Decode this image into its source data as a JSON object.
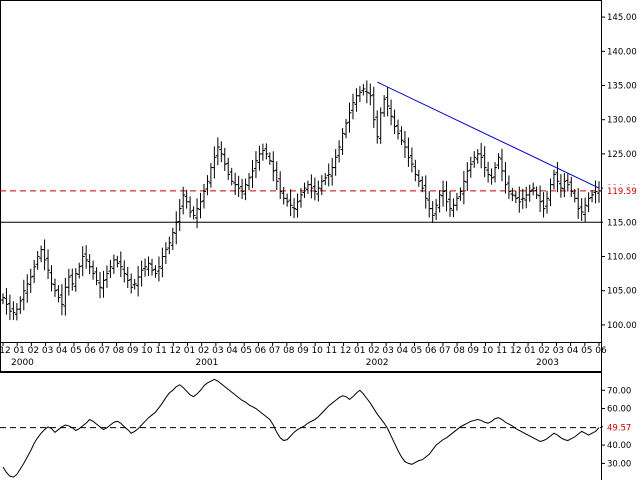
{
  "chart_data": [
    {
      "type": "ohlc",
      "title": "",
      "xlabel": "",
      "ylabel": "",
      "ylim": [
        97.5,
        147.5
      ],
      "yticks": [
        "145.00",
        "140.00",
        "135.00",
        "130.00",
        "125.00",
        "120.00",
        "115.00",
        "110.00",
        "105.00",
        "100.00"
      ],
      "month_labels": [
        "12",
        "01",
        "02",
        "03",
        "04",
        "05",
        "06",
        "07",
        "08",
        "09",
        "10",
        "11",
        "12",
        "01",
        "02",
        "03",
        "04",
        "05",
        "06",
        "07",
        "08",
        "09",
        "10",
        "11",
        "12",
        "01",
        "02",
        "03",
        "04",
        "05",
        "06",
        "07",
        "08",
        "09",
        "10",
        "11",
        "12",
        "01",
        "02",
        "03",
        "04",
        "05",
        "06"
      ],
      "year_labels": [
        "2000",
        "2001",
        "2002",
        "2003"
      ],
      "current_price_label": "119.59",
      "support_label": "115.00",
      "colors": {
        "price_bars": "#000000",
        "trendline": "#0000cc",
        "current_price_line": "#cc0000",
        "support_line": "#000000"
      },
      "series": [
        {
          "weekly_close": [
            104.0,
            103.0,
            102.0,
            101.8,
            102.3,
            103.5,
            105.0,
            106.0,
            107.0,
            108.5,
            110.0,
            111.0,
            109.5,
            108.0,
            106.0,
            105.0,
            104.0,
            103.0,
            105.5,
            107.0,
            106.0,
            107.5,
            108.5,
            110.0,
            109.5,
            108.5,
            107.5,
            106.5,
            105.5,
            106.5,
            107.5,
            108.5,
            109.5,
            109.0,
            108.5,
            107.5,
            106.5,
            105.5,
            106.0,
            107.0,
            108.0,
            108.5,
            109.0,
            108.0,
            107.5,
            108.5,
            110.0,
            111.0,
            112.0,
            113.5,
            115.0,
            117.0,
            119.0,
            118.0,
            116.5,
            116.0,
            117.0,
            118.0,
            119.5,
            121.0,
            123.0,
            124.5,
            126.0,
            125.0,
            123.5,
            122.0,
            121.0,
            120.5,
            120.0,
            119.5,
            120.5,
            121.5,
            122.5,
            124.0,
            125.0,
            125.5,
            125.0,
            124.0,
            122.5,
            121.0,
            119.5,
            118.5,
            118.0,
            117.5,
            117.0,
            118.0,
            119.0,
            120.0,
            120.5,
            120.0,
            119.5,
            120.0,
            121.0,
            121.5,
            122.0,
            123.0,
            124.5,
            126.0,
            128.0,
            129.5,
            131.0,
            132.5,
            133.5,
            134.0,
            134.5,
            134.0,
            133.5,
            130.0,
            127.5,
            131.0,
            133.0,
            132.0,
            130.5,
            129.0,
            128.0,
            127.0,
            126.0,
            124.5,
            123.5,
            122.0,
            121.0,
            120.0,
            118.5,
            117.0,
            116.0,
            117.5,
            119.0,
            119.5,
            118.0,
            117.0,
            117.5,
            118.5,
            119.5,
            121.0,
            122.5,
            123.5,
            124.5,
            125.0,
            124.5,
            123.0,
            122.0,
            121.5,
            123.0,
            124.5,
            122.5,
            120.5,
            119.5,
            119.0,
            118.5,
            118.0,
            118.5,
            119.0,
            119.5,
            120.0,
            119.0,
            118.0,
            117.0,
            118.5,
            120.5,
            122.0,
            121.0,
            120.0,
            121.0,
            120.5,
            119.5,
            118.5,
            117.0,
            116.5,
            117.5,
            118.5,
            119.0,
            119.5,
            119.6
          ]
        },
        {
          "name": "support",
          "level": 115.0
        }
      ]
    },
    {
      "type": "line",
      "title": "",
      "xlabel": "",
      "ylabel": "",
      "ylim": [
        22,
        80
      ],
      "yticks": [
        "70.00",
        "60.00",
        "50.00",
        "40.00",
        "30.00"
      ],
      "current_value_label": "49.57",
      "series": [
        {
          "values": [
            28.0,
            25.0,
            23.0,
            22.5,
            24.0,
            27.0,
            30.0,
            33.5,
            37.0,
            41.0,
            44.0,
            46.5,
            48.5,
            50.0,
            49.0,
            47.0,
            48.5,
            50.0,
            51.0,
            50.5,
            49.5,
            48.0,
            49.0,
            50.5,
            52.0,
            54.0,
            53.0,
            51.5,
            50.0,
            48.5,
            49.5,
            51.0,
            52.5,
            53.0,
            52.0,
            50.0,
            48.5,
            46.5,
            47.5,
            49.0,
            51.0,
            53.0,
            55.0,
            56.5,
            58.0,
            60.5,
            63.0,
            66.0,
            68.5,
            70.0,
            72.0,
            73.0,
            71.5,
            69.5,
            67.5,
            66.5,
            68.0,
            70.0,
            72.5,
            74.0,
            75.0,
            76.0,
            75.0,
            73.5,
            72.0,
            70.5,
            69.0,
            67.5,
            66.0,
            64.5,
            63.5,
            62.0,
            61.0,
            60.0,
            58.5,
            57.0,
            55.5,
            54.0,
            51.0,
            47.0,
            44.0,
            42.5,
            43.0,
            45.0,
            47.0,
            48.5,
            49.5,
            50.5,
            52.0,
            53.0,
            54.0,
            55.5,
            57.5,
            59.5,
            61.5,
            63.0,
            64.5,
            66.0,
            67.0,
            66.5,
            65.0,
            66.5,
            68.5,
            70.0,
            68.0,
            65.5,
            63.0,
            60.0,
            57.0,
            54.5,
            52.0,
            49.0,
            45.0,
            41.0,
            37.0,
            33.5,
            31.0,
            30.0,
            29.5,
            30.5,
            31.5,
            32.0,
            33.5,
            35.0,
            37.5,
            40.0,
            41.5,
            43.0,
            44.0,
            45.5,
            47.0,
            48.5,
            50.0,
            51.0,
            52.0,
            53.0,
            53.5,
            54.0,
            53.5,
            52.5,
            52.0,
            53.0,
            54.5,
            55.0,
            54.0,
            52.5,
            51.5,
            50.5,
            49.0,
            48.0,
            47.0,
            46.0,
            45.0,
            44.0,
            43.0,
            42.0,
            42.5,
            43.5,
            45.0,
            46.5,
            45.5,
            44.0,
            43.0,
            42.5,
            43.5,
            44.5,
            46.0,
            47.5,
            46.5,
            45.5,
            46.5,
            47.5,
            49.57
          ]
        }
      ]
    }
  ]
}
